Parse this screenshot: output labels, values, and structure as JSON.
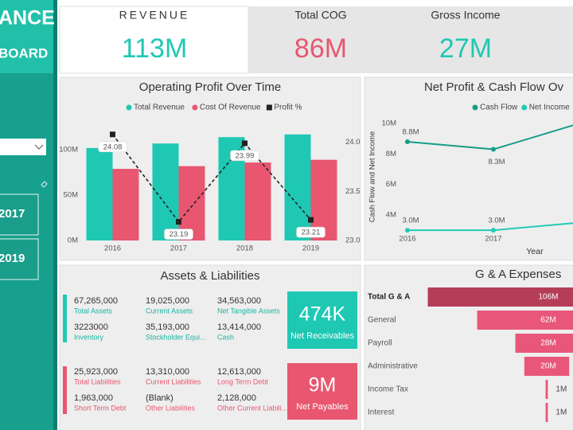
{
  "sidebar": {
    "title": "ANCE",
    "subtitle": "BOARD",
    "buttons": [
      "2017",
      "2019"
    ]
  },
  "kpis": [
    {
      "label": "REVENUE",
      "value": "113M"
    },
    {
      "label": "Total COG",
      "value": "86M"
    },
    {
      "label": "Gross Income",
      "value": "27M"
    }
  ],
  "chart_data": [
    {
      "type": "bar",
      "title": "Operating Profit Over Time",
      "categories": [
        "2016",
        "2017",
        "2018",
        "2019"
      ],
      "series": [
        {
          "name": "Total Revenue",
          "color": "#1fc8b3",
          "values": [
            102,
            107,
            114,
            117
          ]
        },
        {
          "name": "Cost Of Revenue",
          "color": "#e8566f",
          "values": [
            79,
            82,
            86,
            89
          ]
        },
        {
          "name": "Profit %",
          "color": "#222222",
          "type": "line",
          "axis": "y2",
          "values": [
            24.08,
            23.19,
            23.99,
            23.21
          ]
        }
      ],
      "ylim": [
        0,
        130
      ],
      "yticks": [
        {
          "value": 0,
          "label": "0M"
        },
        {
          "value": 50,
          "label": "50M"
        },
        {
          "value": 100,
          "label": "100M"
        }
      ],
      "y2lim": [
        23,
        24.2
      ],
      "y2ticks": [
        {
          "value": 23,
          "label": "23.0"
        },
        23.5,
        {
          "value": 24,
          "label": "24.0"
        }
      ],
      "grid": false
    },
    {
      "type": "line",
      "title": "Net Profit & Cash Flow Ov",
      "ylabel": "Cash Flow and Net Income",
      "xlabel": "Year",
      "categories": [
        "2016",
        "2017",
        null
      ],
      "series": [
        {
          "name": "Cash Flow",
          "color": "#179c88",
          "values": [
            8.8,
            8.3,
            10.0
          ],
          "value_labels": [
            "8.8M",
            "8.3M",
            null
          ]
        },
        {
          "name": "Net Income",
          "color": "#22cbb6",
          "values": [
            3.0,
            3.0,
            3.5
          ],
          "value_labels": [
            "3.0M",
            "3.0M",
            null
          ]
        }
      ],
      "ylim": [
        2.6,
        10.3
      ],
      "yticks": [
        {
          "value": 4,
          "label": "4M"
        },
        {
          "value": 6,
          "label": "6M"
        },
        {
          "value": 8,
          "label": "8M"
        },
        {
          "value": 10,
          "label": "10M"
        }
      ],
      "grid": false
    },
    {
      "type": "funnel",
      "title": "G & A Expenses",
      "categories": [
        "Total G & A",
        "General",
        "Payroll",
        "Administrative",
        "Income Tax",
        "Interest"
      ],
      "values": [
        106,
        62,
        28,
        20,
        1,
        1
      ],
      "value_labels": [
        "106M",
        "62M",
        "28M",
        "20M",
        "1M",
        "1M"
      ],
      "colors": [
        "#b53d58",
        "#e8577a",
        "#e8577a",
        "#e8577a",
        "#e8577a",
        "#e8577a"
      ]
    }
  ],
  "assets": {
    "title": "Assets & Liabilities",
    "asset_items": [
      {
        "value": "67,265,000",
        "label": "Total Assets"
      },
      {
        "value": "19,025,000",
        "label": "Current Assets"
      },
      {
        "value": "34,563,000",
        "label": "Net Tangible Assets"
      },
      {
        "value": "3223000",
        "label": "Inventory"
      },
      {
        "value": "35,193,000",
        "label": "Stockholder Equi..."
      },
      {
        "value": "13,414,000",
        "label": "Cash"
      }
    ],
    "liability_items": [
      {
        "value": "25,923,000",
        "label": "Total Liabilities"
      },
      {
        "value": "13,310,000",
        "label": "Current Liabilities"
      },
      {
        "value": "12,613,000",
        "label": "Long Term Debt"
      },
      {
        "value": "1,963,000",
        "label": "Short Term Debt"
      },
      {
        "value": "(Blank)",
        "label": "Other Liabilities"
      },
      {
        "value": "2,128,000",
        "label": "Other Current Liabili..."
      }
    ],
    "receivables": {
      "value": "474K",
      "label": "Net Receivables"
    },
    "payables": {
      "value": "9M",
      "label": "Net Payables"
    }
  }
}
